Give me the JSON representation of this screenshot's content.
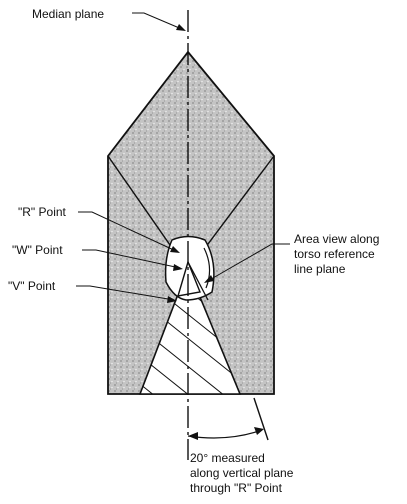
{
  "labels": {
    "median_plane": "Median plane",
    "r_point": "\"R\" Point",
    "w_point": "\"W\" Point",
    "v_point": "\"V\" Point",
    "area_view": [
      "Area view along",
      "torso reference",
      "line plane"
    ],
    "angle_note": [
      "20° measured",
      "along vertical plane",
      "through \"R\" Point"
    ]
  },
  "colors": {
    "ink": "#111111",
    "shading": "#bdbdbd",
    "background": "#ffffff"
  },
  "angle_degrees": 20
}
